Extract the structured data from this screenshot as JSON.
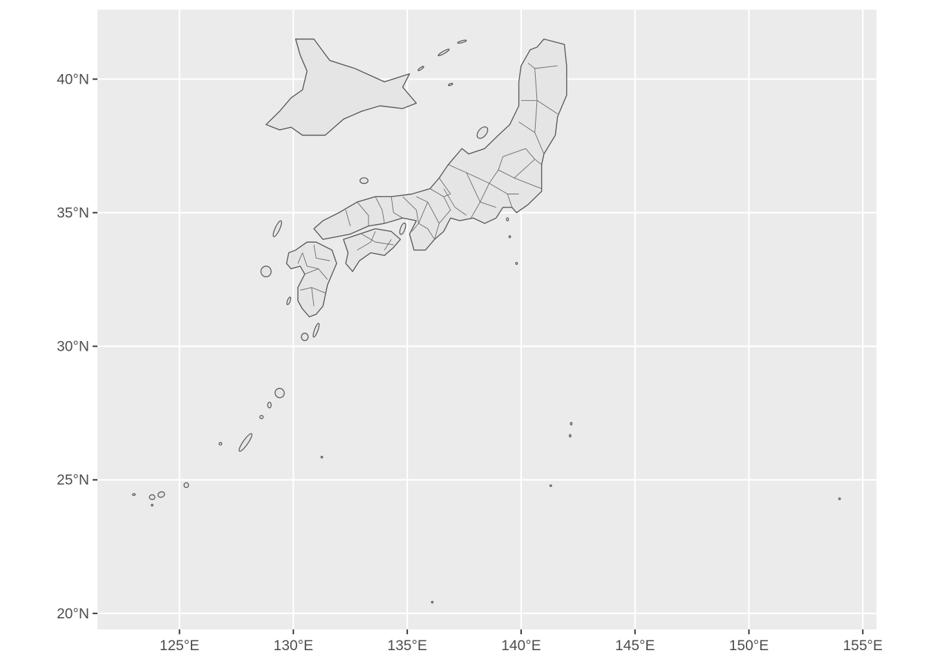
{
  "chart_data": {
    "type": "map",
    "title": "",
    "xlabel": "",
    "ylabel": "",
    "xlim": [
      121.4,
      155.6
    ],
    "ylim": [
      19.4,
      42.6
    ],
    "grid": true,
    "x_ticks": [
      {
        "value": 125,
        "label": "125°E"
      },
      {
        "value": 130,
        "label": "130°E"
      },
      {
        "value": 135,
        "label": "135°E"
      },
      {
        "value": 140,
        "label": "140°E"
      },
      {
        "value": 145,
        "label": "145°E"
      },
      {
        "value": 150,
        "label": "150°E"
      },
      {
        "value": 155,
        "label": "155°E"
      }
    ],
    "y_ticks": [
      {
        "value": 20,
        "label": "20°N"
      },
      {
        "value": 25,
        "label": "25°N"
      },
      {
        "value": 30,
        "label": "30°N"
      },
      {
        "value": 35,
        "label": "35°N"
      },
      {
        "value": 40,
        "label": "40°N"
      }
    ],
    "colors": {
      "panel": "#ebebeb",
      "grid": "#ffffff",
      "land_fill": "#e5e5e5",
      "border": "#595959",
      "axis_text": "#4d4d4d"
    },
    "regions": [
      {
        "name": "hokkaido",
        "coords": [
          [
            130.1,
            41.5
          ],
          [
            130.9,
            41.5
          ],
          [
            131.6,
            40.7
          ],
          [
            132.7,
            40.4
          ],
          [
            134.0,
            39.9
          ],
          [
            135.1,
            40.2
          ],
          [
            134.8,
            39.7
          ],
          [
            135.4,
            39.1
          ],
          [
            134.8,
            38.9
          ],
          [
            133.8,
            39.0
          ],
          [
            133.0,
            38.8
          ],
          [
            132.2,
            38.5
          ],
          [
            131.4,
            37.9
          ],
          [
            130.4,
            37.9
          ],
          [
            129.9,
            38.2
          ],
          [
            129.4,
            38.1
          ],
          [
            128.8,
            38.3
          ],
          [
            129.4,
            38.8
          ],
          [
            129.9,
            39.3
          ],
          [
            130.4,
            39.6
          ],
          [
            130.6,
            40.3
          ],
          [
            130.3,
            40.9
          ],
          [
            130.1,
            41.5
          ]
        ]
      },
      {
        "name": "honshu",
        "coords": [
          [
            141.0,
            41.5
          ],
          [
            141.9,
            41.3
          ],
          [
            142.0,
            40.5
          ],
          [
            142.0,
            39.4
          ],
          [
            141.6,
            38.6
          ],
          [
            141.5,
            37.9
          ],
          [
            141.0,
            37.2
          ],
          [
            140.9,
            36.8
          ],
          [
            140.9,
            35.8
          ],
          [
            140.3,
            35.3
          ],
          [
            139.8,
            35.0
          ],
          [
            139.6,
            35.2
          ],
          [
            139.2,
            35.2
          ],
          [
            138.9,
            34.8
          ],
          [
            138.4,
            34.6
          ],
          [
            137.9,
            34.8
          ],
          [
            137.3,
            34.7
          ],
          [
            136.9,
            34.8
          ],
          [
            136.6,
            34.3
          ],
          [
            136.2,
            34.0
          ],
          [
            135.8,
            33.6
          ],
          [
            135.3,
            33.6
          ],
          [
            135.1,
            34.2
          ],
          [
            135.4,
            34.7
          ],
          [
            134.8,
            34.8
          ],
          [
            134.0,
            34.6
          ],
          [
            133.3,
            34.5
          ],
          [
            132.5,
            34.2
          ],
          [
            131.9,
            34.1
          ],
          [
            131.3,
            34.0
          ],
          [
            130.9,
            34.4
          ],
          [
            131.3,
            34.7
          ],
          [
            132.0,
            35.0
          ],
          [
            132.8,
            35.4
          ],
          [
            133.6,
            35.6
          ],
          [
            134.3,
            35.6
          ],
          [
            135.2,
            35.7
          ],
          [
            136.0,
            35.9
          ],
          [
            136.4,
            36.3
          ],
          [
            136.8,
            36.8
          ],
          [
            137.2,
            37.2
          ],
          [
            137.4,
            37.4
          ],
          [
            137.7,
            37.2
          ],
          [
            138.4,
            37.4
          ],
          [
            139.0,
            37.9
          ],
          [
            139.5,
            38.3
          ],
          [
            139.9,
            39.0
          ],
          [
            139.9,
            39.9
          ],
          [
            140.0,
            40.5
          ],
          [
            140.4,
            41.1
          ],
          [
            140.7,
            41.2
          ],
          [
            141.0,
            41.5
          ]
        ]
      },
      {
        "name": "shikoku",
        "coords": [
          [
            132.2,
            34.0
          ],
          [
            132.9,
            34.2
          ],
          [
            133.6,
            34.4
          ],
          [
            134.3,
            34.3
          ],
          [
            134.7,
            34.0
          ],
          [
            134.4,
            33.7
          ],
          [
            134.0,
            33.4
          ],
          [
            133.4,
            33.5
          ],
          [
            132.9,
            33.2
          ],
          [
            132.6,
            32.8
          ],
          [
            132.3,
            33.1
          ],
          [
            132.4,
            33.5
          ],
          [
            132.2,
            34.0
          ]
        ]
      },
      {
        "name": "kyushu",
        "coords": [
          [
            130.6,
            33.9
          ],
          [
            131.0,
            33.9
          ],
          [
            131.7,
            33.6
          ],
          [
            131.9,
            33.1
          ],
          [
            131.5,
            32.3
          ],
          [
            131.3,
            31.5
          ],
          [
            131.0,
            31.2
          ],
          [
            130.7,
            31.1
          ],
          [
            130.4,
            31.4
          ],
          [
            130.2,
            31.7
          ],
          [
            130.2,
            32.2
          ],
          [
            130.5,
            32.7
          ],
          [
            130.3,
            33.0
          ],
          [
            129.9,
            32.9
          ],
          [
            129.7,
            33.1
          ],
          [
            129.8,
            33.5
          ],
          [
            130.1,
            33.6
          ],
          [
            130.6,
            33.9
          ]
        ]
      }
    ],
    "islands": [
      {
        "name": "sado",
        "lon": 138.3,
        "lat": 38.0,
        "w": 0.35,
        "h": 0.5,
        "rot": 40
      },
      {
        "name": "awaji",
        "lon": 134.8,
        "lat": 34.4,
        "w": 0.2,
        "h": 0.45,
        "rot": 20
      },
      {
        "name": "oki",
        "lon": 133.1,
        "lat": 36.2,
        "w": 0.35,
        "h": 0.22,
        "rot": 0
      },
      {
        "name": "tsushima",
        "lon": 129.3,
        "lat": 34.4,
        "w": 0.2,
        "h": 0.65,
        "rot": 25
      },
      {
        "name": "goto",
        "lon": 128.8,
        "lat": 32.8,
        "w": 0.45,
        "h": 0.4,
        "rot": 0
      },
      {
        "name": "koshiki",
        "lon": 129.8,
        "lat": 31.7,
        "w": 0.12,
        "h": 0.3,
        "rot": 20
      },
      {
        "name": "tanegashima",
        "lon": 131.0,
        "lat": 30.6,
        "w": 0.15,
        "h": 0.55,
        "rot": 20
      },
      {
        "name": "yakushima",
        "lon": 130.5,
        "lat": 30.35,
        "w": 0.3,
        "h": 0.28,
        "rot": 0
      },
      {
        "name": "amami",
        "lon": 129.4,
        "lat": 28.25,
        "w": 0.4,
        "h": 0.35,
        "rot": -30
      },
      {
        "name": "tokunoshima",
        "lon": 128.95,
        "lat": 27.8,
        "w": 0.15,
        "h": 0.22,
        "rot": 0
      },
      {
        "name": "okinoerabu",
        "lon": 128.6,
        "lat": 27.35,
        "w": 0.15,
        "h": 0.12,
        "rot": 0
      },
      {
        "name": "okinawa",
        "lon": 127.9,
        "lat": 26.4,
        "w": 0.22,
        "h": 0.8,
        "rot": 35
      },
      {
        "name": "kume",
        "lon": 126.8,
        "lat": 26.35,
        "w": 0.12,
        "h": 0.1,
        "rot": 0
      },
      {
        "name": "miyako",
        "lon": 125.3,
        "lat": 24.8,
        "w": 0.2,
        "h": 0.18,
        "rot": 0
      },
      {
        "name": "ishigaki",
        "lon": 124.2,
        "lat": 24.45,
        "w": 0.3,
        "h": 0.2,
        "rot": -20
      },
      {
        "name": "iriomote",
        "lon": 123.8,
        "lat": 24.35,
        "w": 0.25,
        "h": 0.18,
        "rot": 0
      },
      {
        "name": "yonaguni",
        "lon": 123.0,
        "lat": 24.45,
        "w": 0.12,
        "h": 0.07,
        "rot": 0
      },
      {
        "name": "hateruma",
        "lon": 123.8,
        "lat": 24.05,
        "w": 0.06,
        "h": 0.05,
        "rot": 0
      },
      {
        "name": "izu-oshima",
        "lon": 139.4,
        "lat": 34.75,
        "w": 0.09,
        "h": 0.12,
        "rot": 0
      },
      {
        "name": "miyake",
        "lon": 139.5,
        "lat": 34.1,
        "w": 0.07,
        "h": 0.07,
        "rot": 0
      },
      {
        "name": "hachijo",
        "lon": 139.8,
        "lat": 33.1,
        "w": 0.08,
        "h": 0.08,
        "rot": 0
      },
      {
        "name": "chichijima",
        "lon": 142.2,
        "lat": 27.1,
        "w": 0.06,
        "h": 0.1,
        "rot": 0
      },
      {
        "name": "hahajima",
        "lon": 142.15,
        "lat": 26.65,
        "w": 0.06,
        "h": 0.1,
        "rot": 0
      },
      {
        "name": "iwo",
        "lon": 141.3,
        "lat": 24.78,
        "w": 0.05,
        "h": 0.04,
        "rot": 0
      },
      {
        "name": "daito",
        "lon": 131.25,
        "lat": 25.85,
        "w": 0.05,
        "h": 0.05,
        "rot": 0
      },
      {
        "name": "okinotorishima",
        "lon": 136.1,
        "lat": 20.42,
        "w": 0.03,
        "h": 0.03,
        "rot": 0
      },
      {
        "name": "minamitorishima",
        "lon": 153.98,
        "lat": 24.29,
        "w": 0.03,
        "h": 0.03,
        "rot": 0
      },
      {
        "name": "kurile-1",
        "lon": 136.6,
        "lat": 41.0,
        "w": 0.55,
        "h": 0.09,
        "rot": -30
      },
      {
        "name": "kurile-2",
        "lon": 137.4,
        "lat": 41.4,
        "w": 0.4,
        "h": 0.07,
        "rot": -15
      },
      {
        "name": "kurile-3",
        "lon": 135.6,
        "lat": 40.4,
        "w": 0.3,
        "h": 0.07,
        "rot": -35
      },
      {
        "name": "kurile-4",
        "lon": 136.9,
        "lat": 39.8,
        "w": 0.2,
        "h": 0.06,
        "rot": -20
      }
    ],
    "prefecture_borders": [
      [
        [
          140.3,
          40.6
        ],
        [
          140.6,
          40.4
        ],
        [
          141.6,
          40.5
        ]
      ],
      [
        [
          140.6,
          40.4
        ],
        [
          140.7,
          39.2
        ],
        [
          141.6,
          38.7
        ]
      ],
      [
        [
          140.0,
          39.2
        ],
        [
          140.7,
          39.2
        ]
      ],
      [
        [
          140.7,
          39.2
        ],
        [
          140.6,
          38.0
        ],
        [
          141.0,
          37.2
        ]
      ],
      [
        [
          139.9,
          38.4
        ],
        [
          140.6,
          38.0
        ]
      ],
      [
        [
          139.2,
          37.1
        ],
        [
          140.2,
          37.4
        ],
        [
          140.6,
          37.0
        ],
        [
          140.9,
          36.8
        ]
      ],
      [
        [
          139.2,
          37.1
        ],
        [
          139.0,
          36.6
        ],
        [
          139.7,
          36.3
        ],
        [
          140.6,
          37.0
        ]
      ],
      [
        [
          139.7,
          36.3
        ],
        [
          140.6,
          36.0
        ],
        [
          140.9,
          35.9
        ]
      ],
      [
        [
          139.0,
          36.6
        ],
        [
          138.6,
          36.1
        ],
        [
          139.4,
          35.7
        ],
        [
          139.9,
          35.7
        ]
      ],
      [
        [
          139.4,
          35.7
        ],
        [
          139.6,
          35.2
        ]
      ],
      [
        [
          138.6,
          36.1
        ],
        [
          138.2,
          35.4
        ],
        [
          138.9,
          35.2
        ]
      ],
      [
        [
          137.6,
          36.5
        ],
        [
          138.2,
          35.4
        ],
        [
          137.8,
          34.8
        ]
      ],
      [
        [
          136.8,
          36.8
        ],
        [
          137.6,
          36.5
        ],
        [
          138.6,
          36.1
        ]
      ],
      [
        [
          136.6,
          35.9
        ],
        [
          137.1,
          35.2
        ],
        [
          137.6,
          34.9
        ]
      ],
      [
        [
          136.4,
          36.3
        ],
        [
          136.9,
          35.7
        ]
      ],
      [
        [
          136.0,
          35.9
        ],
        [
          136.6,
          35.6
        ],
        [
          136.9,
          35.7
        ]
      ],
      [
        [
          136.6,
          35.6
        ],
        [
          136.9,
          35.1
        ],
        [
          136.4,
          34.6
        ]
      ],
      [
        [
          135.9,
          35.4
        ],
        [
          136.4,
          34.6
        ],
        [
          136.2,
          34.0
        ]
      ],
      [
        [
          135.4,
          35.6
        ],
        [
          135.9,
          35.4
        ],
        [
          135.6,
          34.8
        ]
      ],
      [
        [
          134.8,
          35.6
        ],
        [
          135.4,
          35.1
        ],
        [
          135.5,
          34.6
        ]
      ],
      [
        [
          135.6,
          34.8
        ],
        [
          135.5,
          34.6
        ],
        [
          135.2,
          34.3
        ]
      ],
      [
        [
          135.5,
          34.6
        ],
        [
          135.9,
          34.4
        ],
        [
          136.2,
          34.0
        ]
      ],
      [
        [
          134.3,
          35.6
        ],
        [
          134.4,
          35.0
        ],
        [
          134.8,
          34.8
        ]
      ],
      [
        [
          133.6,
          35.6
        ],
        [
          133.9,
          35.1
        ],
        [
          134.0,
          34.6
        ]
      ],
      [
        [
          132.8,
          35.4
        ],
        [
          133.3,
          34.9
        ],
        [
          133.3,
          34.5
        ]
      ],
      [
        [
          132.3,
          35.1
        ],
        [
          132.5,
          34.5
        ]
      ],
      [
        [
          133.0,
          34.2
        ],
        [
          133.6,
          33.9
        ],
        [
          134.4,
          33.8
        ]
      ],
      [
        [
          132.8,
          33.6
        ],
        [
          133.4,
          33.9
        ],
        [
          133.6,
          34.3
        ]
      ],
      [
        [
          134.3,
          34.0
        ],
        [
          134.0,
          33.6
        ]
      ],
      [
        [
          130.9,
          33.8
        ],
        [
          131.0,
          33.3
        ],
        [
          131.6,
          33.2
        ]
      ],
      [
        [
          130.4,
          33.5
        ],
        [
          130.6,
          33.0
        ],
        [
          131.1,
          32.9
        ]
      ],
      [
        [
          130.4,
          33.5
        ],
        [
          130.2,
          33.1
        ]
      ],
      [
        [
          130.5,
          32.7
        ],
        [
          131.1,
          32.9
        ],
        [
          131.5,
          32.5
        ]
      ],
      [
        [
          130.3,
          32.1
        ],
        [
          130.8,
          32.2
        ],
        [
          131.4,
          32.0
        ]
      ],
      [
        [
          130.8,
          32.2
        ],
        [
          130.9,
          31.5
        ]
      ]
    ]
  }
}
